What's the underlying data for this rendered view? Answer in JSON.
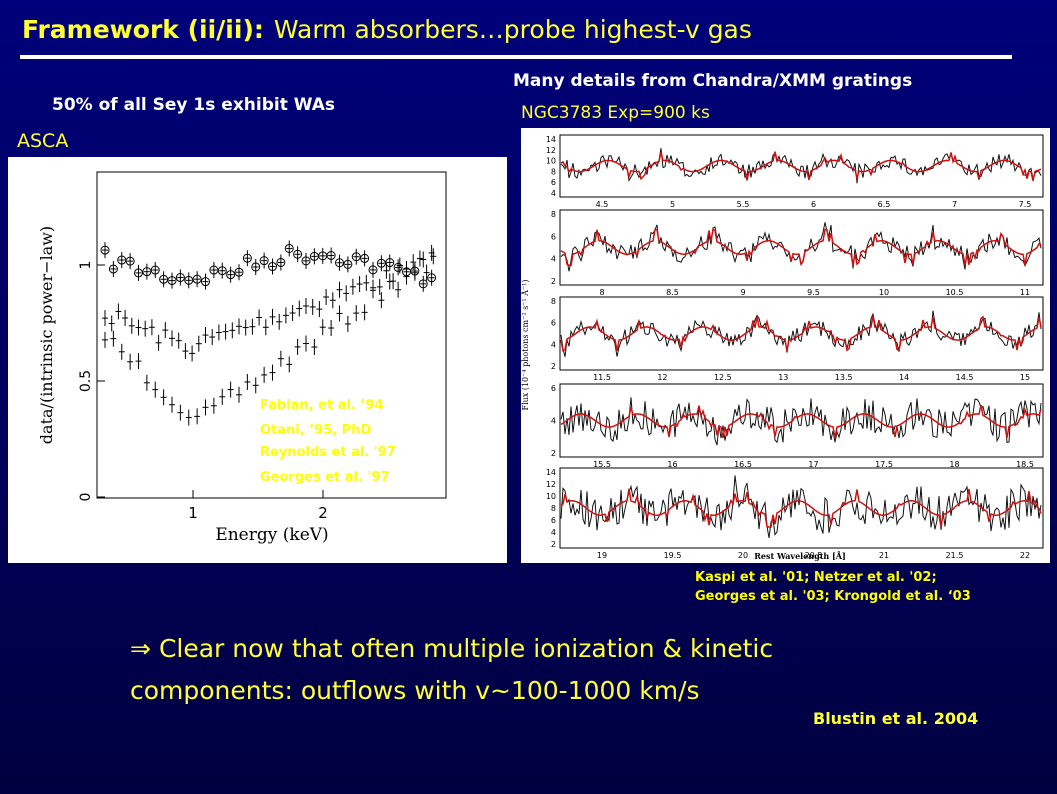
{
  "title": {
    "lead": "Framework (ii/ii):",
    "rest": "Warm absorbers…probe highest-v gas"
  },
  "left": {
    "caption": "50% of all Sey 1s exhibit WAs",
    "instrument": "ASCA",
    "plot": {
      "ylabel": "data/(intrinsic power−law)",
      "xlabel": "Energy (keV)",
      "yticks": [
        "0",
        "0.5",
        "1"
      ],
      "xticks": [
        "1",
        "2"
      ]
    },
    "refs": [
      "Fabian, et al. ’94",
      "Otani, ’95, PhD",
      "Reynolds et al. '97",
      "Georges et al. '97"
    ]
  },
  "right": {
    "caption": "Many details from Chandra/XMM gratings",
    "object": "NGC3783 Exp=900 ks",
    "plot": {
      "ylabel": "Flux (10⁻⁴ photons cm⁻² s⁻¹ Å⁻¹)",
      "xlabel": "Rest Wavelength [Å]",
      "panels": [
        {
          "xticks": [
            "4.5",
            "5",
            "5.5",
            "6",
            "6.5",
            "7",
            "7.5"
          ],
          "yticks": [
            "14",
            "12",
            "10",
            "8",
            "6",
            "4"
          ]
        },
        {
          "xticks": [
            "8",
            "8.5",
            "9",
            "9.5",
            "10",
            "10.5",
            "11"
          ],
          "yticks": [
            "8",
            "6",
            "4",
            "2"
          ]
        },
        {
          "xticks": [
            "11.5",
            "12",
            "12.5",
            "13",
            "13.5",
            "14",
            "14.5",
            "15"
          ],
          "yticks": [
            "8",
            "6",
            "4",
            "2"
          ]
        },
        {
          "xticks": [
            "15.5",
            "16",
            "16.5",
            "17",
            "17.5",
            "18",
            "18.5"
          ],
          "yticks": [
            "6",
            "4",
            "2"
          ]
        },
        {
          "xticks": [
            "19",
            "19.5",
            "20",
            "20.5",
            "21",
            "21.5",
            "22"
          ],
          "yticks": [
            "14",
            "12",
            "10",
            "8",
            "6",
            "4",
            "2"
          ]
        }
      ]
    },
    "refs": [
      "Kaspi et al. '01; Netzer et al. '02;",
      "Georges et al. '03; Krongold et al. ‘03"
    ]
  },
  "conclusion": {
    "arrow": "⇒",
    "lines": [
      "Clear now that often multiple ionization & kinetic",
      "components: outflows with v~100-1000 km/s"
    ]
  },
  "citation": "Blustin et al. 2004"
}
